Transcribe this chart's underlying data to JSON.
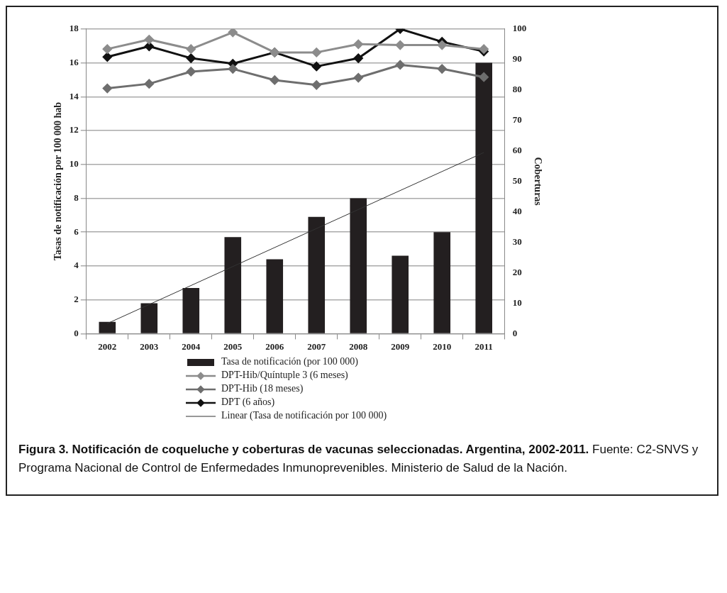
{
  "chart_data": {
    "type": "bar",
    "title": "Figura 3. Notificación de coqueluche y coberturas de vacunas seleccionadas. Argentina, 2002-2011.",
    "annotations": [
      "Fuente: C2-SNVS y Programa Nacional de Control de Enfermedades Inmunoprevenibles. Ministerio de Salud de la Nación."
    ],
    "ylabel": "Tasas de notificación por 100 000 hab",
    "y2label": "Coberturas",
    "categories": [
      "2002",
      "2003",
      "2004",
      "2005",
      "2006",
      "2007",
      "2008",
      "2009",
      "2010",
      "2011"
    ],
    "series": [
      {
        "name": "Tasa de notificación (por 100 000)",
        "color": "#231f20",
        "values": [
          0.7,
          1.8,
          2.7,
          5.7,
          4.4,
          6.9,
          8.0,
          4.6,
          6.0,
          16.0
        ]
      },
      {
        "name": "DPT-Hib/Quíntuple 3 (6 meses)",
        "type": "line",
        "axis": "y2",
        "color": "#8c8c8c",
        "values": [
          93.4,
          96.5,
          93.4,
          98.9,
          92.3,
          92.3,
          95.0,
          94.7,
          94.7,
          93.4
        ]
      },
      {
        "name": "DPT-Hib (18 meses)",
        "type": "line",
        "axis": "y2",
        "color": "#6e6e6e",
        "values": [
          80.5,
          82.0,
          86.0,
          86.9,
          83.2,
          81.6,
          84.0,
          88.2,
          86.9,
          84.2
        ]
      },
      {
        "name": "DPT (6 años)",
        "type": "line",
        "axis": "y2",
        "color": "#111111",
        "values": [
          90.8,
          94.3,
          90.4,
          88.6,
          92.3,
          87.7,
          90.4,
          100.0,
          95.8,
          92.6
        ]
      },
      {
        "name": "Linear (Tasa de notificación por 100 000)",
        "type": "line",
        "marker": "none",
        "color": "#333333",
        "values": [
          0.6,
          null,
          null,
          null,
          null,
          null,
          null,
          null,
          null,
          10.7
        ]
      }
    ],
    "ylim": [
      0,
      18
    ],
    "yticks": [
      0,
      2,
      4,
      6,
      8,
      10,
      12,
      14,
      16,
      18
    ],
    "y2lim": [
      0,
      100
    ],
    "y2ticks": [
      0,
      10,
      20,
      30,
      40,
      50,
      60,
      70,
      80,
      90,
      100
    ],
    "grid": "y",
    "legend": "bottom",
    "marker": "diamond"
  }
}
